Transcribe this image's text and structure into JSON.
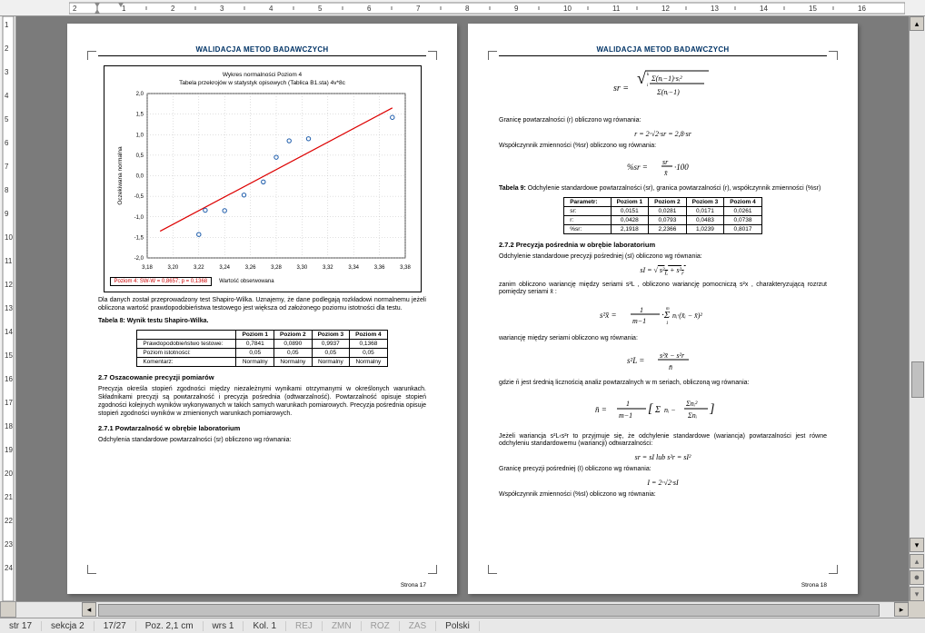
{
  "ruler": {
    "marks": [
      "2",
      "",
      "1",
      "",
      "2",
      "",
      "3",
      "",
      "4",
      "",
      "5",
      "",
      "6",
      "",
      "7",
      "",
      "8",
      "",
      "9",
      "",
      "10",
      "",
      "11",
      "",
      "12",
      "",
      "13",
      "",
      "14",
      "",
      "15",
      "",
      "16"
    ]
  },
  "vruler": {
    "marks": [
      "1",
      "2",
      "3",
      "4",
      "5",
      "6",
      "7",
      "8",
      "9",
      "10",
      "11",
      "12",
      "13",
      "14",
      "15",
      "16",
      "17",
      "18",
      "19",
      "20",
      "21",
      "22",
      "23",
      "24"
    ]
  },
  "page1": {
    "header": "WALIDACJA METOD BADAWCZYCH",
    "chart": {
      "title1": "Wykres normalności  Poziom 4",
      "title2": "Tabela przekrojów w statystyk opisowych (Tablica B1.sta) 4v*8c",
      "ylabel": "Oczekiwana normalna",
      "xlabel": "Wartość obserwowana",
      "legend": "Poziom 4: SW-W = 0,8657; p = 0,1368",
      "xlim": [
        3.18,
        3.38
      ],
      "ylim": [
        -2.0,
        2.0
      ],
      "xticks": [
        "3,18",
        "3,20",
        "3,22",
        "3,24",
        "3,26",
        "3,28",
        "3,30",
        "3,32",
        "3,34",
        "3,36",
        "3,38"
      ],
      "yticks": [
        "-2,0",
        "-1,5",
        "-1,0",
        "-0,5",
        "0,0",
        "0,5",
        "1,0",
        "1,5",
        "2,0"
      ],
      "points": [
        [
          3.22,
          -1.43
        ],
        [
          3.225,
          -0.84
        ],
        [
          3.24,
          -0.85
        ],
        [
          3.255,
          -0.47
        ],
        [
          3.27,
          -0.15
        ],
        [
          3.28,
          0.45
        ],
        [
          3.29,
          0.85
        ],
        [
          3.305,
          0.9
        ],
        [
          3.37,
          1.42
        ]
      ],
      "line": {
        "x1": 3.19,
        "y1": -1.35,
        "x2": 3.37,
        "y2": 1.65,
        "color": "#dd0000"
      },
      "point_color": "#1a5aaa",
      "grid_color": "#b0b0b0",
      "bg": "#ffffff"
    },
    "para1": "Dla danych został przeprowadzony test Shapiro-Wilka. Uznajemy, że dane podlegają rozkładowi normalnemu jeżeli obliczona wartość prawdopodobieństwa testowego jest większa od założonego poziomu istotności dla testu.",
    "t8_caption": "Tabela 8: Wynik testu Shapiro-Wilka.",
    "t8": {
      "headers": [
        "",
        "Poziom 1",
        "Poziom 2",
        "Poziom 3",
        "Poziom 4"
      ],
      "rows": [
        [
          "Prawdopodobieństwo testowe:",
          "0,7841",
          "0,0890",
          "0,9937",
          "0,1368"
        ],
        [
          "Poziom istotności:",
          "0,05",
          "0,05",
          "0,05",
          "0,05"
        ],
        [
          "Komentarz:",
          "Normalny",
          "Normalny",
          "Normalny",
          "Normalny"
        ]
      ]
    },
    "sec27": "2.7   Oszacowanie precyzji pomiarów",
    "para27": "Precyzja określa stopień zgodności między niezależnymi wynikami otrzymanymi w określonych warunkach. Składnikami precyzji są powtarzalność i precyzja pośrednia (odtwarzalność). Powtarzalność opisuje stopień zgodności kolejnych wyników wykonywanych w takich samych warunkach pomiarowych. Precyzja pośrednia opisuje stopień zgodności wyników w zmienionych warunkach pomiarowych.",
    "sec271": "2.7.1  Powtarzalność w obrębie laboratorium",
    "para271": "Odchylenia standardowe powtarzalności (sr) obliczono wg równania:",
    "pagenum": "Strona 17"
  },
  "page2": {
    "header": "WALIDACJA METOD BADAWCZYCH",
    "para_r": "Granicę powtarzalności (r) obliczono wg równania:",
    "f_r": "r = 2·√2·sr = 2,8·sr",
    "para_wsr": "Współczynnik zmienności (%sr) obliczono wg równania:",
    "t9_caption": "Tabela 9: Odchylenie standardowe powtarzalności (sr), granica powtarzalności (r), współczynnik zmienności (%sr)",
    "t9": {
      "headers": [
        "Parametr:",
        "Poziom 1",
        "Poziom 2",
        "Poziom 3",
        "Poziom 4"
      ],
      "rows": [
        [
          "sr:",
          "0,0151",
          "0,0281",
          "0,0171",
          "0,0261"
        ],
        [
          "r:",
          "0,0428",
          "0,0793",
          "0,0483",
          "0,0738"
        ],
        [
          "%sr:",
          "2,1918",
          "2,2366",
          "1,0239",
          "0,8017"
        ]
      ]
    },
    "sec272": "2.7.2  Precyzja pośrednia w obrębie laboratorium",
    "para_sI": "Odchylenie standardowe precyzji pośredniej (sI) obliczono wg równania:",
    "para_zanim": "zanim obliczono wariancję między seriami s²L , obliczono wariancję pomocniczą s²x , charakteryzującą rozrzut pomiędzy seriami x̄ :",
    "para_war": "wariancję między seriami obliczono wg równania:",
    "para_gdzie": "gdzie n̄ jest średnią licznością analiz powtarzalnych w m seriach, obliczoną wg równania:",
    "para_jezeli": "Jeżeli wariancja s²L‹s²r to przyjmuje się, że odchylenie standardowe (wariancja) powtarzalności jest równe odchyleniu standardowemu (wariancji) odtwarzalności:",
    "f_sr_sl": "sr = sI lub s²r = sI²",
    "para_I": "Granicę precyzji pośredniej (I) obliczono wg równania:",
    "f_I": "I = 2·√2·sI",
    "para_wsI": "Współczynnik zmienności (%sI) obliczono wg równania:",
    "pagenum": "Strona 18"
  },
  "status": {
    "str": "str  17",
    "sekcja": "sekcja  2",
    "pages": "17/27",
    "poz": "Poz.  2,1 cm",
    "wrs": "wrs  1",
    "kol": "Kol.  1",
    "rej": "REJ",
    "zmn": "ZMN",
    "roz": "ROZ",
    "zas": "ZAS",
    "lang": "Polski"
  }
}
